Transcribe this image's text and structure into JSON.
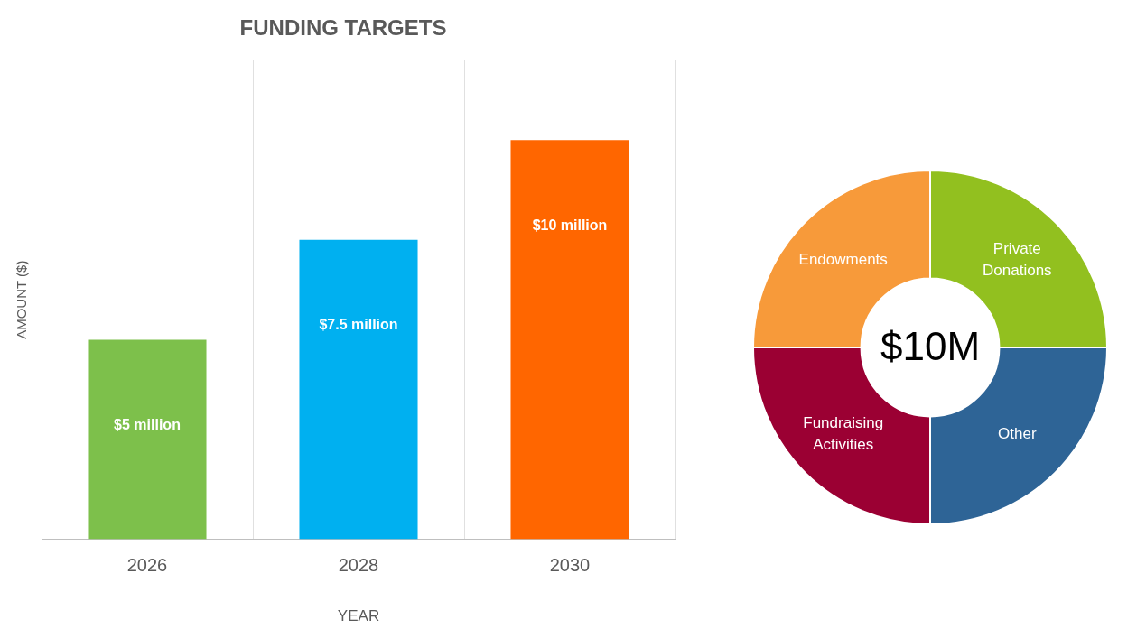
{
  "chart_data": [
    {
      "type": "bar",
      "title": "FUNDING TARGETS",
      "xlabel": "YEAR",
      "ylabel": "AMOUNT ($)",
      "categories": [
        "2026",
        "2028",
        "2030"
      ],
      "values": [
        5,
        7.5,
        10
      ],
      "colors": [
        "#7dc04b",
        "#00b0f0",
        "#ff6600"
      ],
      "value_labels": [
        "$5 million",
        "$7.5 million",
        "$10 million"
      ],
      "grid": "x",
      "legend": false
    },
    {
      "type": "donut",
      "categories": [
        "Private Donations",
        "Other",
        "Fundraising Activities",
        "Endowments"
      ],
      "values": [
        25,
        25,
        25,
        25
      ],
      "colors": [
        "#92c01f",
        "#2e6496",
        "#9b0033",
        "#f79a3a"
      ],
      "annotations": [
        "$10M"
      ],
      "legend": false
    }
  ]
}
